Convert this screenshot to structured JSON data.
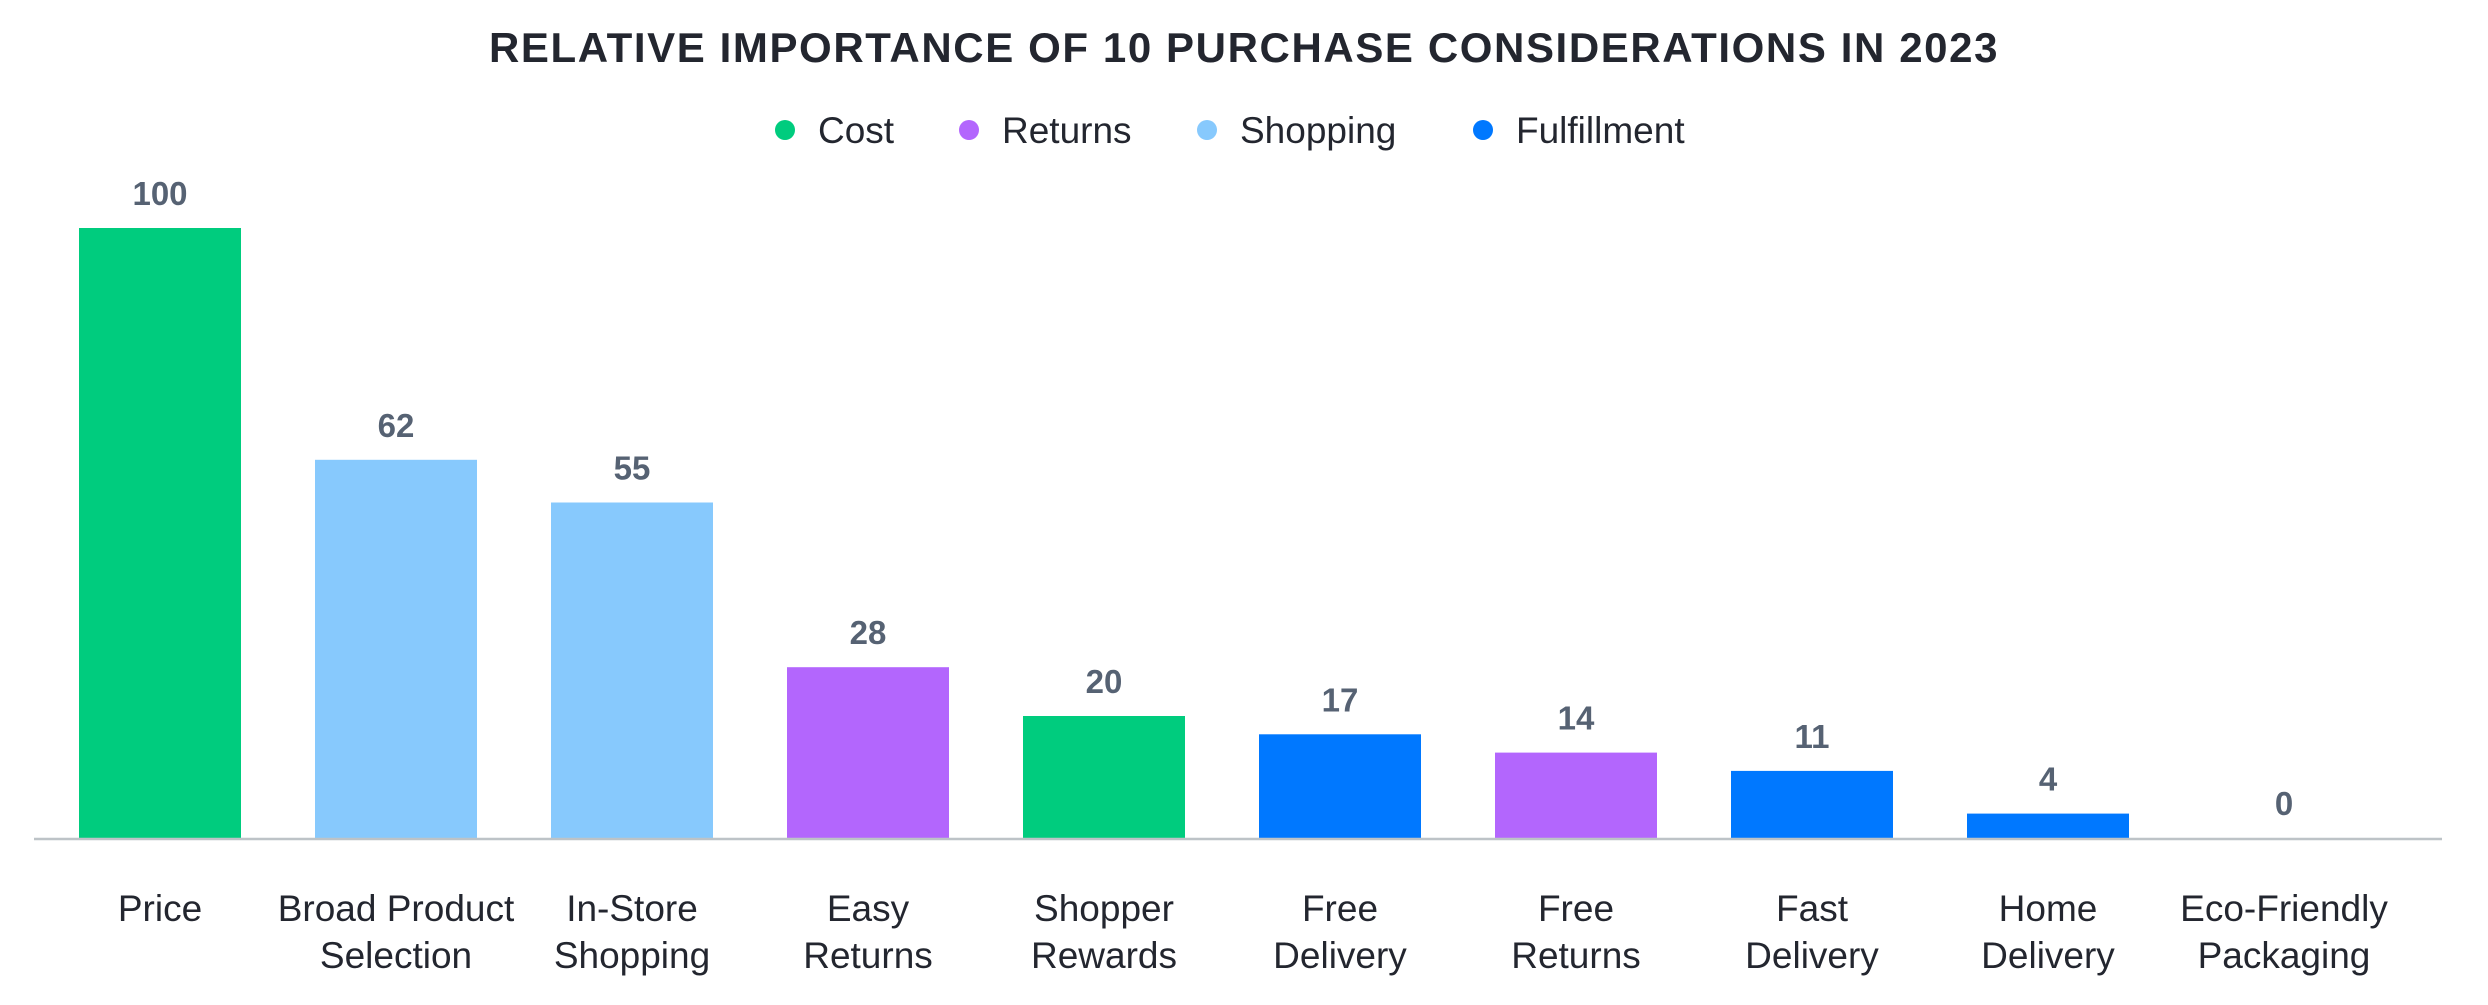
{
  "chart_data": {
    "type": "bar",
    "title": "RELATIVE IMPORTANCE OF 10 PURCHASE CONSIDERATIONS IN 2023",
    "xlabel": "",
    "ylabel": "",
    "ylim": [
      0,
      100
    ],
    "grid": false,
    "legend_position": "top-center",
    "legend": [
      {
        "name": "Cost",
        "color": "#00cc7e"
      },
      {
        "name": "Returns",
        "color": "#b366fd"
      },
      {
        "name": "Shopping",
        "color": "#87c9fd"
      },
      {
        "name": "Fulfillment",
        "color": "#0078ff"
      }
    ],
    "categories": [
      [
        "Price"
      ],
      [
        "Broad Product",
        "Selection"
      ],
      [
        "In-Store",
        "Shopping"
      ],
      [
        "Easy",
        "Returns"
      ],
      [
        "Shopper",
        "Rewards"
      ],
      [
        "Free",
        "Delivery"
      ],
      [
        "Free",
        "Returns"
      ],
      [
        "Fast",
        "Delivery"
      ],
      [
        "Home",
        "Delivery"
      ],
      [
        "Eco-Friendly",
        "Packaging"
      ]
    ],
    "values": [
      100,
      62,
      55,
      28,
      20,
      17,
      14,
      11,
      4,
      0
    ],
    "value_labels": [
      "100",
      "62",
      "55",
      "28",
      "20",
      "17",
      "14",
      "11",
      "4",
      "0"
    ],
    "groups": [
      "Cost",
      "Shopping",
      "Shopping",
      "Returns",
      "Cost",
      "Fulfillment",
      "Returns",
      "Fulfillment",
      "Fulfillment",
      "Fulfillment"
    ]
  }
}
